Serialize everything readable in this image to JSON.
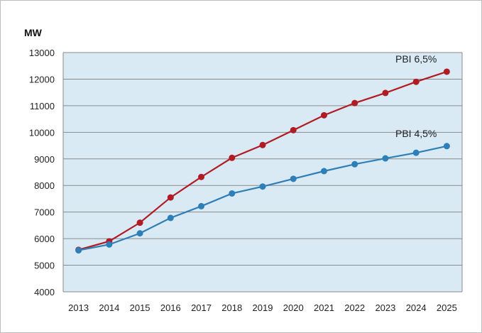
{
  "chart_data": {
    "type": "line",
    "ylabel": "MW",
    "xlabel": "",
    "title": "",
    "ylim": [
      4000,
      13000
    ],
    "yticks": [
      4000,
      5000,
      6000,
      7000,
      8000,
      9000,
      10000,
      11000,
      12000,
      13000
    ],
    "categories": [
      "2013",
      "2014",
      "2015",
      "2016",
      "2017",
      "2018",
      "2019",
      "2020",
      "2021",
      "2022",
      "2023",
      "2024",
      "2025"
    ],
    "grid": true,
    "plot_background": "#d9eaf4",
    "series": [
      {
        "name": "PBI 6,5%",
        "color": "#b11c24",
        "values": [
          5580,
          5900,
          6600,
          7550,
          8320,
          9040,
          9520,
          10080,
          10640,
          11100,
          11480,
          11900,
          12280
        ]
      },
      {
        "name": "PBI 4,5%",
        "color": "#2e7fb8",
        "values": [
          5560,
          5780,
          6200,
          6780,
          7220,
          7700,
          7960,
          8250,
          8540,
          8800,
          9020,
          9230,
          9480
        ]
      }
    ]
  }
}
